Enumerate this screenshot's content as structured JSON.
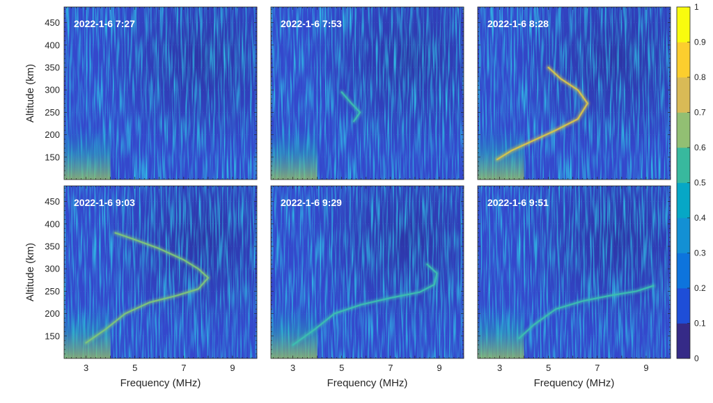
{
  "chart_data": {
    "type": "heatmap",
    "colormap": "parula",
    "background_color": "#3448cc",
    "xlabel": "Frequency (MHz)",
    "ylabel": "Altitude (km)",
    "xlim": [
      2.1,
      10.0
    ],
    "ylim": [
      100,
      485
    ],
    "xticks": [
      3,
      5,
      7,
      9
    ],
    "yticks": [
      150,
      200,
      250,
      300,
      350,
      400,
      450
    ],
    "colorbar": {
      "range": [
        0,
        1
      ],
      "levels": 10,
      "ticks": [
        "0",
        "0.1",
        "0.2",
        "0.3",
        "0.4",
        "0.5",
        "0.6",
        "0.7",
        "0.8",
        "0.9",
        "1"
      ],
      "colors": [
        "#352a87",
        "#1e4ed8",
        "#0d74dd",
        "#1390d4",
        "#06a7c6",
        "#38b99e",
        "#92bf73",
        "#d9ba56",
        "#fcce2e",
        "#f9fb0e"
      ]
    },
    "panels": [
      {
        "title": "2022-1-6 7:27",
        "trace": [],
        "trace_strength": 0
      },
      {
        "title": "2022-1-6 7:53",
        "trace": [
          [
            5.0,
            295
          ],
          [
            5.4,
            270
          ],
          [
            5.75,
            250
          ],
          [
            5.5,
            230
          ]
        ],
        "trace_strength": 0.45
      },
      {
        "title": "2022-1-6 8:28",
        "trace": [
          [
            2.9,
            145
          ],
          [
            3.5,
            165
          ],
          [
            4.3,
            185
          ],
          [
            5.3,
            210
          ],
          [
            6.2,
            235
          ],
          [
            6.6,
            270
          ],
          [
            6.2,
            300
          ],
          [
            5.5,
            325
          ],
          [
            5.0,
            350
          ]
        ],
        "trace_strength": 0.7
      },
      {
        "title": "2022-1-6 9:03",
        "trace": [
          [
            3.0,
            135
          ],
          [
            3.8,
            165
          ],
          [
            4.6,
            200
          ],
          [
            5.6,
            225
          ],
          [
            6.7,
            240
          ],
          [
            7.6,
            255
          ],
          [
            8.0,
            280
          ],
          [
            7.6,
            300
          ],
          [
            7.0,
            320
          ],
          [
            6.0,
            345
          ],
          [
            5.0,
            365
          ],
          [
            4.2,
            380
          ]
        ],
        "trace_strength": 0.6
      },
      {
        "title": "2022-1-6 9:29",
        "trace": [
          [
            3.0,
            130
          ],
          [
            3.9,
            165
          ],
          [
            4.7,
            200
          ],
          [
            5.8,
            220
          ],
          [
            7.0,
            235
          ],
          [
            8.2,
            248
          ],
          [
            8.8,
            265
          ],
          [
            8.9,
            290
          ],
          [
            8.5,
            310
          ]
        ],
        "trace_strength": 0.45
      },
      {
        "title": "2022-1-6 9:51",
        "trace": [
          [
            3.8,
            145
          ],
          [
            4.4,
            175
          ],
          [
            5.3,
            210
          ],
          [
            6.4,
            228
          ],
          [
            7.5,
            240
          ],
          [
            8.6,
            250
          ],
          [
            9.3,
            262
          ]
        ],
        "trace_strength": 0.38
      }
    ]
  }
}
